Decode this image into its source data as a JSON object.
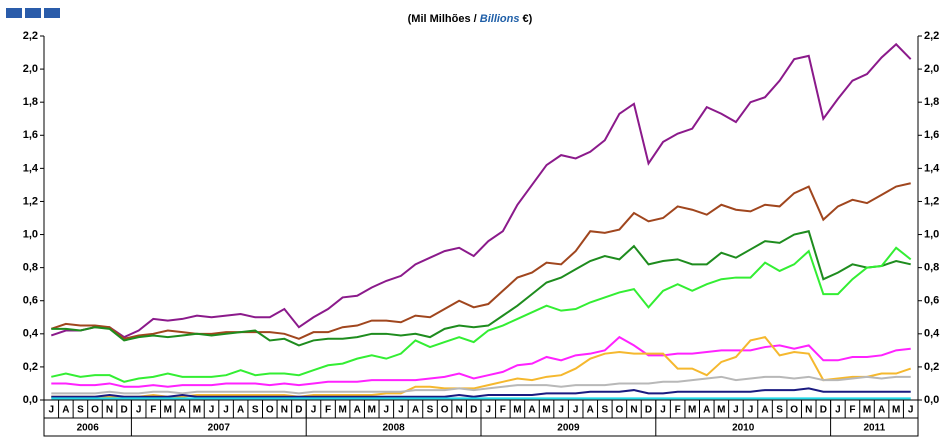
{
  "chart_data": {
    "type": "line",
    "subtitle": [
      "(Mil Milhões / ",
      "Billions",
      " €)"
    ],
    "categories": [
      "J",
      "A",
      "S",
      "O",
      "N",
      "D",
      "J",
      "F",
      "M",
      "A",
      "M",
      "J",
      "J",
      "A",
      "S",
      "O",
      "N",
      "D",
      "J",
      "F",
      "M",
      "A",
      "M",
      "J",
      "J",
      "A",
      "S",
      "O",
      "N",
      "D",
      "J",
      "F",
      "M",
      "A",
      "M",
      "J",
      "J",
      "A",
      "S",
      "O",
      "N",
      "D",
      "J",
      "F",
      "M",
      "A",
      "M",
      "J",
      "J",
      "A",
      "S",
      "O",
      "N",
      "D",
      "J",
      "F",
      "M",
      "A",
      "M",
      "J"
    ],
    "years": [
      "2006",
      "2006",
      "2006",
      "2006",
      "2006",
      "2006",
      "2007",
      "2007",
      "2007",
      "2007",
      "2007",
      "2007",
      "2007",
      "2007",
      "2007",
      "2007",
      "2007",
      "2007",
      "2008",
      "2008",
      "2008",
      "2008",
      "2008",
      "2008",
      "2008",
      "2008",
      "2008",
      "2008",
      "2008",
      "2008",
      "2009",
      "2009",
      "2009",
      "2009",
      "2009",
      "2009",
      "2009",
      "2009",
      "2009",
      "2009",
      "2009",
      "2009",
      "2010",
      "2010",
      "2010",
      "2010",
      "2010",
      "2010",
      "2010",
      "2010",
      "2010",
      "2010",
      "2010",
      "2010",
      "2011",
      "2011",
      "2011",
      "2011",
      "2011",
      "2011"
    ],
    "ylim": [
      0,
      2.2
    ],
    "yticks": [
      {
        "value": 0,
        "label": "0,0"
      },
      {
        "value": 0.2,
        "label": "0,2"
      },
      {
        "value": 0.4,
        "label": "0,4"
      },
      {
        "value": 0.6,
        "label": "0,6"
      },
      {
        "value": 0.8,
        "label": "0,8"
      },
      {
        "value": 1.0,
        "label": "1,0"
      },
      {
        "value": 1.2,
        "label": "1,2"
      },
      {
        "value": 1.4,
        "label": "1,4"
      },
      {
        "value": 1.6,
        "label": "1,6"
      },
      {
        "value": 1.8,
        "label": "1,8"
      },
      {
        "value": 2.0,
        "label": "2,0"
      },
      {
        "value": 2.2,
        "label": "2,2"
      }
    ],
    "grid": false,
    "series": [
      {
        "color": "#8b1a8b",
        "values": [
          0.39,
          0.42,
          0.42,
          0.44,
          0.44,
          0.38,
          0.42,
          0.49,
          0.48,
          0.49,
          0.51,
          0.5,
          0.51,
          0.52,
          0.5,
          0.5,
          0.55,
          0.44,
          0.5,
          0.55,
          0.62,
          0.63,
          0.68,
          0.72,
          0.75,
          0.82,
          0.86,
          0.9,
          0.92,
          0.87,
          0.96,
          1.02,
          1.18,
          1.3,
          1.42,
          1.48,
          1.46,
          1.5,
          1.57,
          1.73,
          1.79,
          1.43,
          1.56,
          1.61,
          1.64,
          1.77,
          1.73,
          1.68,
          1.8,
          1.83,
          1.93,
          2.06,
          2.08,
          1.7,
          1.82,
          1.93,
          1.97,
          2.07,
          2.15,
          2.06
        ]
      },
      {
        "color": "#a0461e",
        "values": [
          0.43,
          0.46,
          0.45,
          0.45,
          0.44,
          0.37,
          0.39,
          0.4,
          0.42,
          0.41,
          0.4,
          0.4,
          0.41,
          0.41,
          0.41,
          0.41,
          0.4,
          0.37,
          0.41,
          0.41,
          0.44,
          0.45,
          0.48,
          0.48,
          0.47,
          0.51,
          0.5,
          0.55,
          0.6,
          0.56,
          0.58,
          0.66,
          0.74,
          0.77,
          0.83,
          0.82,
          0.9,
          1.02,
          1.01,
          1.03,
          1.13,
          1.08,
          1.1,
          1.17,
          1.15,
          1.12,
          1.18,
          1.15,
          1.14,
          1.18,
          1.17,
          1.25,
          1.29,
          1.09,
          1.17,
          1.21,
          1.19,
          1.24,
          1.29,
          1.31
        ]
      },
      {
        "color": "#1e8c1e",
        "values": [
          0.43,
          0.43,
          0.42,
          0.44,
          0.43,
          0.36,
          0.38,
          0.39,
          0.38,
          0.39,
          0.4,
          0.39,
          0.4,
          0.41,
          0.42,
          0.36,
          0.37,
          0.33,
          0.36,
          0.37,
          0.37,
          0.38,
          0.4,
          0.4,
          0.39,
          0.4,
          0.38,
          0.43,
          0.45,
          0.44,
          0.45,
          0.51,
          0.57,
          0.64,
          0.71,
          0.74,
          0.79,
          0.84,
          0.87,
          0.85,
          0.93,
          0.82,
          0.84,
          0.85,
          0.82,
          0.82,
          0.89,
          0.86,
          0.91,
          0.96,
          0.95,
          1.0,
          1.02,
          0.73,
          0.77,
          0.82,
          0.8,
          0.81,
          0.84,
          0.82
        ]
      },
      {
        "color": "#33ee33",
        "values": [
          0.14,
          0.16,
          0.14,
          0.15,
          0.15,
          0.11,
          0.13,
          0.14,
          0.16,
          0.14,
          0.14,
          0.14,
          0.15,
          0.18,
          0.15,
          0.16,
          0.16,
          0.15,
          0.18,
          0.21,
          0.22,
          0.25,
          0.27,
          0.25,
          0.28,
          0.36,
          0.32,
          0.35,
          0.38,
          0.35,
          0.42,
          0.45,
          0.49,
          0.53,
          0.57,
          0.54,
          0.55,
          0.59,
          0.62,
          0.65,
          0.67,
          0.56,
          0.66,
          0.7,
          0.66,
          0.7,
          0.73,
          0.74,
          0.74,
          0.83,
          0.78,
          0.82,
          0.9,
          0.64,
          0.64,
          0.73,
          0.8,
          0.81,
          0.92,
          0.85
        ]
      },
      {
        "color": "#ff22ff",
        "values": [
          0.1,
          0.1,
          0.09,
          0.09,
          0.1,
          0.08,
          0.08,
          0.09,
          0.08,
          0.09,
          0.09,
          0.09,
          0.1,
          0.1,
          0.1,
          0.09,
          0.1,
          0.09,
          0.1,
          0.11,
          0.11,
          0.11,
          0.12,
          0.12,
          0.12,
          0.12,
          0.13,
          0.14,
          0.16,
          0.13,
          0.15,
          0.17,
          0.21,
          0.22,
          0.26,
          0.24,
          0.27,
          0.28,
          0.3,
          0.38,
          0.33,
          0.27,
          0.27,
          0.28,
          0.28,
          0.29,
          0.3,
          0.3,
          0.3,
          0.32,
          0.33,
          0.31,
          0.33,
          0.24,
          0.24,
          0.26,
          0.26,
          0.27,
          0.3,
          0.31
        ]
      },
      {
        "color": "#f5b82e",
        "values": [
          0.02,
          0.02,
          0.02,
          0.02,
          0.02,
          0.02,
          0.02,
          0.03,
          0.02,
          0.02,
          0.03,
          0.03,
          0.03,
          0.03,
          0.03,
          0.03,
          0.03,
          0.02,
          0.03,
          0.03,
          0.03,
          0.03,
          0.03,
          0.04,
          0.04,
          0.08,
          0.08,
          0.07,
          0.07,
          0.07,
          0.09,
          0.11,
          0.13,
          0.12,
          0.14,
          0.15,
          0.19,
          0.25,
          0.28,
          0.29,
          0.28,
          0.28,
          0.28,
          0.19,
          0.19,
          0.15,
          0.23,
          0.26,
          0.36,
          0.38,
          0.27,
          0.29,
          0.28,
          0.12,
          0.13,
          0.14,
          0.14,
          0.16,
          0.16,
          0.19
        ]
      },
      {
        "color": "#b8b8b8",
        "values": [
          0.04,
          0.04,
          0.04,
          0.04,
          0.05,
          0.04,
          0.04,
          0.05,
          0.05,
          0.04,
          0.05,
          0.05,
          0.05,
          0.05,
          0.05,
          0.05,
          0.05,
          0.04,
          0.05,
          0.05,
          0.05,
          0.05,
          0.05,
          0.05,
          0.05,
          0.06,
          0.06,
          0.06,
          0.07,
          0.06,
          0.07,
          0.08,
          0.09,
          0.09,
          0.09,
          0.08,
          0.09,
          0.09,
          0.09,
          0.1,
          0.1,
          0.1,
          0.11,
          0.11,
          0.12,
          0.13,
          0.14,
          0.12,
          0.13,
          0.14,
          0.14,
          0.13,
          0.14,
          0.12,
          0.12,
          0.13,
          0.14,
          0.13,
          0.14,
          0.14
        ]
      },
      {
        "color": "#1a1a80",
        "values": [
          0.02,
          0.02,
          0.02,
          0.02,
          0.03,
          0.02,
          0.02,
          0.02,
          0.02,
          0.03,
          0.02,
          0.02,
          0.02,
          0.02,
          0.02,
          0.02,
          0.02,
          0.02,
          0.02,
          0.02,
          0.02,
          0.02,
          0.02,
          0.02,
          0.02,
          0.02,
          0.02,
          0.02,
          0.03,
          0.02,
          0.03,
          0.03,
          0.03,
          0.03,
          0.04,
          0.04,
          0.04,
          0.05,
          0.05,
          0.05,
          0.06,
          0.04,
          0.04,
          0.05,
          0.05,
          0.05,
          0.05,
          0.05,
          0.05,
          0.06,
          0.06,
          0.06,
          0.07,
          0.05,
          0.05,
          0.05,
          0.05,
          0.05,
          0.05,
          0.05
        ]
      },
      {
        "color": "#22d8e8",
        "values": [
          0.01,
          0.01,
          0.01,
          0.01,
          0.01,
          0.01,
          0.01,
          0.01,
          0.01,
          0.01,
          0.01,
          0.01,
          0.01,
          0.01,
          0.01,
          0.01,
          0.01,
          0.01,
          0.01,
          0.01,
          0.01,
          0.01,
          0.01,
          0.01,
          0.01,
          0.01,
          0.01,
          0.01,
          0.01,
          0.01,
          0.01,
          0.01,
          0.01,
          0.01,
          0.01,
          0.01,
          0.01,
          0.01,
          0.01,
          0.01,
          0.01,
          0.01,
          0.01,
          0.01,
          0.01,
          0.01,
          0.01,
          0.01,
          0.01,
          0.01,
          0.01,
          0.01,
          0.01,
          0.01,
          0.01,
          0.01,
          0.01,
          0.01,
          0.01,
          0.01
        ]
      }
    ]
  }
}
